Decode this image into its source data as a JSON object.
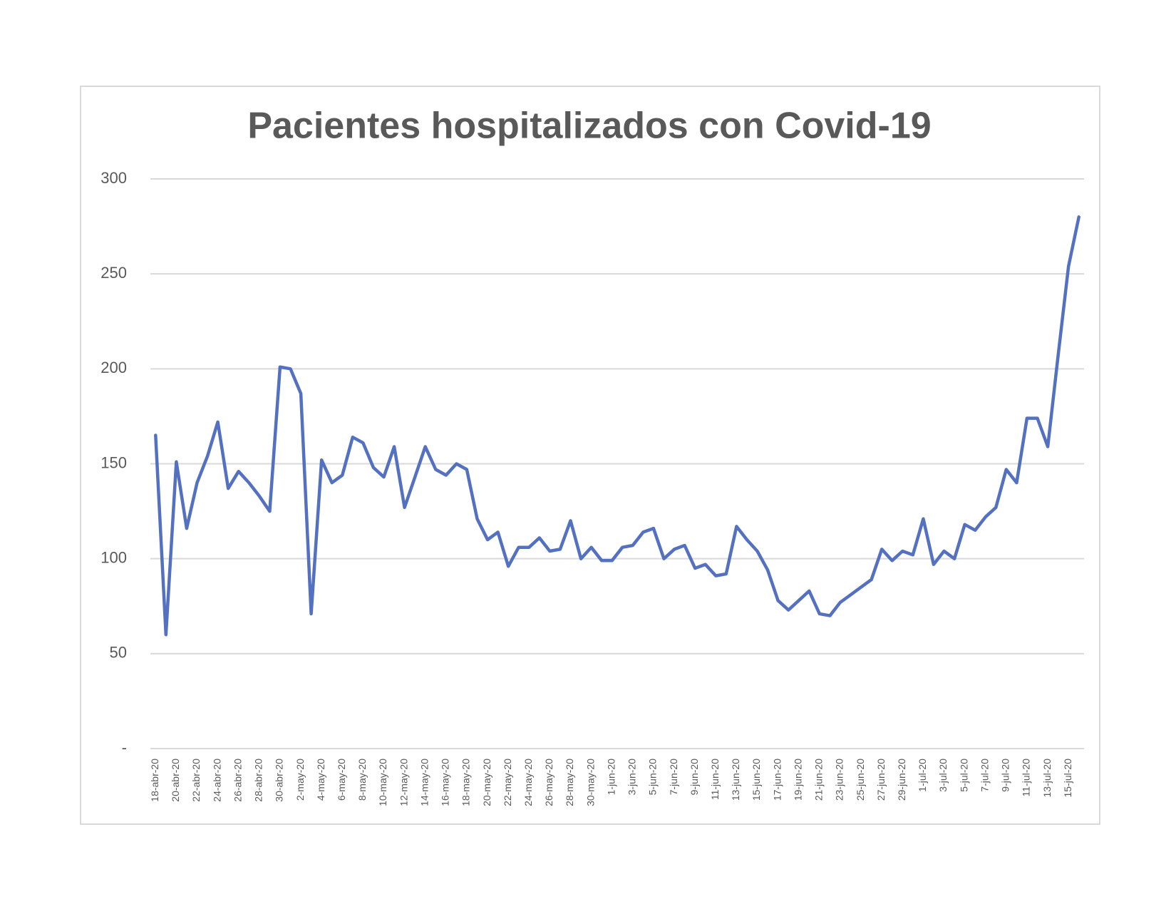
{
  "chart_data": {
    "type": "line",
    "title": "Pacientes hospitalizados con Covid-19",
    "categories": [
      "18-abr-20",
      null,
      "20-abr-20",
      null,
      "22-abr-20",
      null,
      "24-abr-20",
      null,
      "26-abr-20",
      null,
      "28-abr-20",
      null,
      "30-abr-20",
      null,
      "2-may-20",
      null,
      "4-may-20",
      null,
      "6-may-20",
      null,
      "8-may-20",
      null,
      "10-may-20",
      null,
      "12-may-20",
      null,
      "14-may-20",
      null,
      "16-may-20",
      null,
      "18-may-20",
      null,
      "20-may-20",
      null,
      "22-may-20",
      null,
      "24-may-20",
      null,
      "26-may-20",
      null,
      "28-may-20",
      null,
      "30-may-20",
      null,
      "1-jun-20",
      null,
      "3-jun-20",
      null,
      "5-jun-20",
      null,
      "7-jun-20",
      null,
      "9-jun-20",
      null,
      "11-jun-20",
      null,
      "13-jun-20",
      null,
      "15-jun-20",
      null,
      "17-jun-20",
      null,
      "19-jun-20",
      null,
      "21-jun-20",
      null,
      "23-jun-20",
      null,
      "25-jun-20",
      null,
      "27-jun-20",
      null,
      "29-jun-20",
      null,
      "1-jul-20",
      null,
      "3-jul-20",
      null,
      "5-jul-20",
      null,
      "7-jul-20",
      null,
      "9-jul-20",
      null,
      "11-jul-20",
      null,
      "13-jul-20",
      null,
      "15-jul-20",
      null
    ],
    "values": [
      165,
      60,
      151,
      116,
      140,
      154,
      172,
      137,
      146,
      140,
      133,
      125,
      201,
      200,
      187,
      71,
      152,
      140,
      144,
      164,
      161,
      148,
      143,
      159,
      127,
      143,
      159,
      147,
      144,
      150,
      147,
      121,
      110,
      114,
      96,
      106,
      106,
      111,
      104,
      105,
      120,
      100,
      106,
      99,
      99,
      106,
      107,
      114,
      116,
      100,
      105,
      107,
      95,
      97,
      91,
      92,
      117,
      110,
      104,
      94,
      78,
      73,
      78,
      83,
      71,
      70,
      77,
      81,
      85,
      89,
      105,
      99,
      104,
      102,
      121,
      97,
      104,
      100,
      118,
      115,
      122,
      127,
      147,
      140,
      174,
      174,
      159,
      207,
      254,
      280
    ],
    "color": "#5470c0",
    "ylim": [
      0,
      300
    ],
    "yticks": [
      {
        "value": 0,
        "label": "-"
      },
      50,
      100,
      150,
      200,
      250,
      300
    ],
    "grid": true
  }
}
